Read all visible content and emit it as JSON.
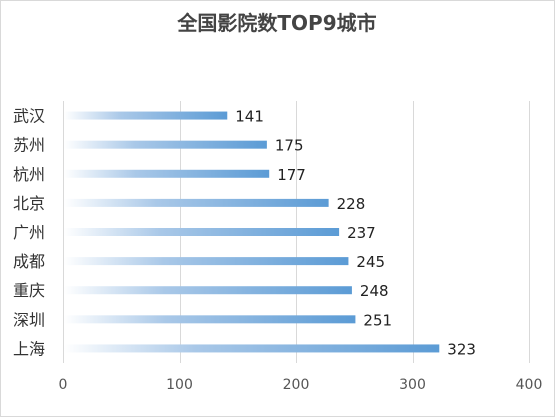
{
  "chart_data": {
    "type": "bar",
    "orientation": "horizontal",
    "title": "全国影院数TOP9城市",
    "categories": [
      "武汉",
      "苏州",
      "杭州",
      "北京",
      "广州",
      "成都",
      "重庆",
      "深圳",
      "上海"
    ],
    "values": [
      141,
      175,
      177,
      228,
      237,
      245,
      248,
      251,
      323
    ],
    "xlim": [
      0,
      400
    ],
    "xticks": [
      0,
      100,
      200,
      300,
      400
    ],
    "grid": "vertical",
    "legend": "none",
    "bar_color": "#5b9bd5",
    "bar_gradient": "fade-to-white-at-base"
  }
}
